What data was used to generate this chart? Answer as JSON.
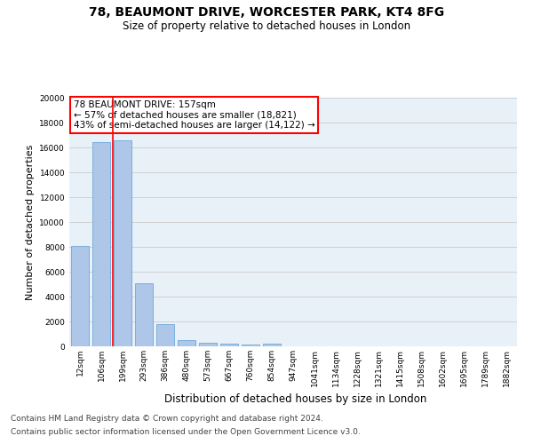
{
  "title1": "78, BEAUMONT DRIVE, WORCESTER PARK, KT4 8FG",
  "title2": "Size of property relative to detached houses in London",
  "xlabel": "Distribution of detached houses by size in London",
  "ylabel": "Number of detached properties",
  "categories": [
    "12sqm",
    "106sqm",
    "199sqm",
    "293sqm",
    "386sqm",
    "480sqm",
    "573sqm",
    "667sqm",
    "760sqm",
    "854sqm",
    "947sqm",
    "1041sqm",
    "1134sqm",
    "1228sqm",
    "1321sqm",
    "1415sqm",
    "1508sqm",
    "1602sqm",
    "1695sqm",
    "1789sqm",
    "1882sqm"
  ],
  "values": [
    8050,
    16400,
    16550,
    5050,
    1800,
    500,
    270,
    190,
    120,
    200,
    0,
    0,
    0,
    0,
    0,
    0,
    0,
    0,
    0,
    0,
    0
  ],
  "bar_color": "#aec6e8",
  "bar_edgecolor": "#5a9fd4",
  "vline_color": "red",
  "annotation_text": "78 BEAUMONT DRIVE: 157sqm\n← 57% of detached houses are smaller (18,821)\n43% of semi-detached houses are larger (14,122) →",
  "annotation_box_color": "#ffffff",
  "annotation_border_color": "red",
  "ylim": [
    0,
    20000
  ],
  "yticks": [
    0,
    2000,
    4000,
    6000,
    8000,
    10000,
    12000,
    14000,
    16000,
    18000,
    20000
  ],
  "grid_color": "#cccccc",
  "bg_color": "#e8f0f8",
  "footer1": "Contains HM Land Registry data © Crown copyright and database right 2024.",
  "footer2": "Contains public sector information licensed under the Open Government Licence v3.0.",
  "title1_fontsize": 10,
  "title2_fontsize": 8.5,
  "xlabel_fontsize": 8.5,
  "ylabel_fontsize": 8,
  "tick_fontsize": 6.5,
  "footer_fontsize": 6.5,
  "annotation_fontsize": 7.5
}
